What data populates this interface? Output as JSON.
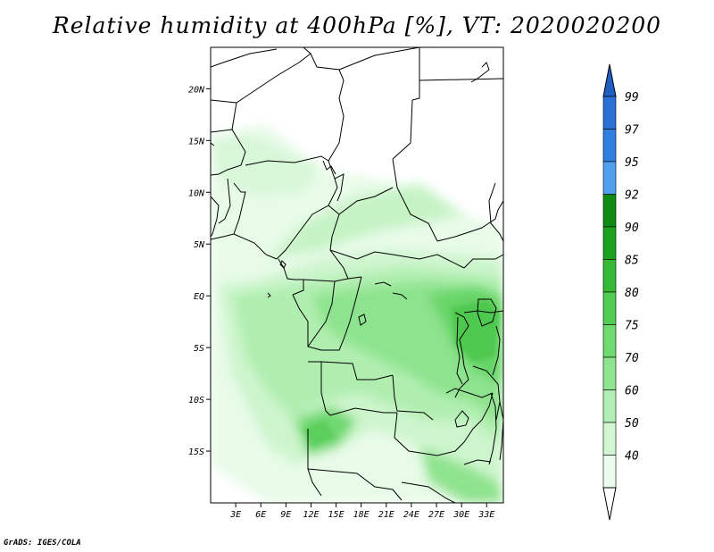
{
  "title": "Relative humidity at 400hPa [%], VT: 2020020200",
  "credit": "GrADS: IGES/COLA",
  "map_data": {
    "variable": "Relative humidity",
    "level": "400hPa",
    "units": "%",
    "valid_time": "2020020200",
    "lon_range": [
      0,
      35
    ],
    "lat_range": [
      -20,
      24
    ],
    "lat_ticks": [
      {
        "value": 20,
        "label": "20N"
      },
      {
        "value": 15,
        "label": "15N"
      },
      {
        "value": 10,
        "label": "10N"
      },
      {
        "value": 5,
        "label": "5N"
      },
      {
        "value": 0,
        "label": "EQ"
      },
      {
        "value": -5,
        "label": "5S"
      },
      {
        "value": -10,
        "label": "10S"
      },
      {
        "value": -15,
        "label": "15S"
      }
    ],
    "lon_ticks": [
      {
        "value": 3,
        "label": "3E"
      },
      {
        "value": 6,
        "label": "6E"
      },
      {
        "value": 9,
        "label": "9E"
      },
      {
        "value": 12,
        "label": "12E"
      },
      {
        "value": 15,
        "label": "15E"
      },
      {
        "value": 18,
        "label": "18E"
      },
      {
        "value": 21,
        "label": "21E"
      },
      {
        "value": 24,
        "label": "24E"
      },
      {
        "value": 27,
        "label": "27E"
      },
      {
        "value": 30,
        "label": "30E"
      },
      {
        "value": 33,
        "label": "33E"
      }
    ]
  },
  "colorbar": {
    "levels": [
      {
        "label": "99",
        "color": "#2a6fd6"
      },
      {
        "label": "97",
        "color": "#2e7fe0"
      },
      {
        "label": "95",
        "color": "#4fa0ec"
      },
      {
        "label": "92",
        "color": "#0f8a12"
      },
      {
        "label": "90",
        "color": "#1ea11f"
      },
      {
        "label": "85",
        "color": "#36b936"
      },
      {
        "label": "80",
        "color": "#52cc52"
      },
      {
        "label": "75",
        "color": "#6fda6f"
      },
      {
        "label": "70",
        "color": "#8fe48f"
      },
      {
        "label": "60",
        "color": "#b2eeb2"
      },
      {
        "label": "50",
        "color": "#d2f6d2"
      },
      {
        "label": "40",
        "color": "#ecfcec"
      }
    ],
    "top_arrow_color": "#1f5fc4",
    "bottom_arrow_color": "#ffffff"
  }
}
